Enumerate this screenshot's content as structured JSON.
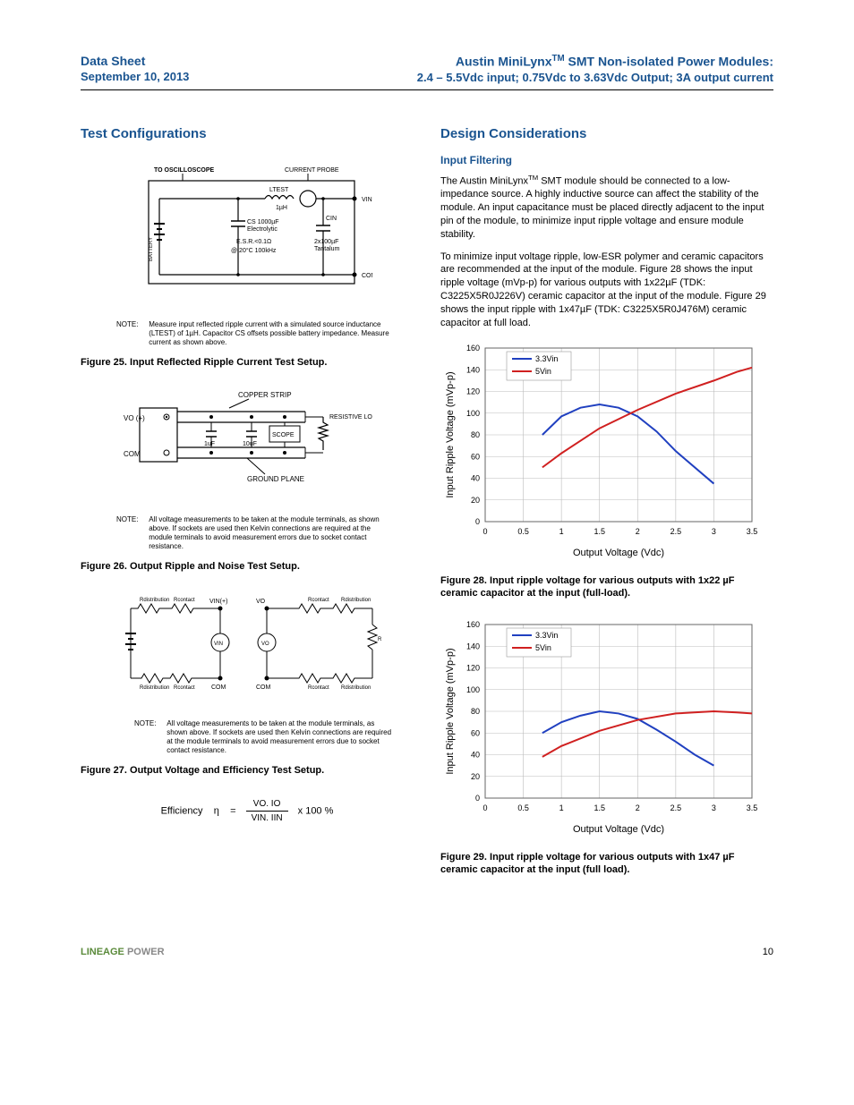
{
  "header": {
    "left_line1": "Data Sheet",
    "left_line2": "September 10, 2013",
    "right_line1_pre": "Austin MiniLynx",
    "right_line1_sup": "TM",
    "right_line1_post": " SMT Non-isolated Power Modules:",
    "right_line2": "2.4 – 5.5Vdc input; 0.75Vdc to 3.63Vdc Output; 3A output current"
  },
  "left_col": {
    "title": "Test Configurations",
    "fig25": {
      "labels": {
        "to_osc": "TO OSCILLOSCOPE",
        "current_probe": "CURRENT PROBE",
        "ltest": "LTEST",
        "l_1uh": "1µH",
        "vin": "VIN(+)",
        "cin_label": "CIN",
        "cin_val1": "2x100µF",
        "cin_val2": "Tantalum",
        "cs_label": "CS",
        "cs_val": "1000µF",
        "cs_type": "Electrolytic",
        "esr": "E.S.R.<0.1Ω",
        "esr_cond": "@ 20°C 100kHz",
        "battery": "BATTERY",
        "com": "COM"
      },
      "note_label": "NOTE:",
      "note": "Measure input reflected ripple current with a simulated source inductance (LTEST) of 1µH. Capacitor CS offsets possible battery impedance. Measure current as shown above.",
      "caption": "Figure 25. Input Reflected Ripple Current Test Setup."
    },
    "fig26": {
      "labels": {
        "copper": "COPPER STRIP",
        "vo": "VO (+)",
        "com": "COM",
        "c1": "1uF",
        "c2": "10uF",
        "scope": "SCOPE",
        "ground": "GROUND PLANE",
        "load": "RESISTIVE LOAD"
      },
      "note_label": "NOTE:",
      "note": "All voltage measurements to be taken at the module terminals, as shown above. If sockets are used then Kelvin connections are required at the module terminals to avoid measurement errors due to socket contact resistance.",
      "caption": "Figure 26. Output Ripple and Noise Test Setup."
    },
    "fig27": {
      "labels": {
        "rdist": "Rdistribution",
        "rcont": "Rcontact",
        "vin_plus": "VIN(+)",
        "vo": "VO",
        "vin_circle": "VIN",
        "vo_circle": "VO",
        "com": "COM",
        "rload": "RLOAD"
      },
      "note_label": "NOTE:",
      "note": "All voltage measurements to be taken at the module terminals, as shown above. If sockets are used then Kelvin connections are required at the module terminals to avoid measurement errors due to socket contact resistance.",
      "caption": "Figure 27. Output Voltage and Efficiency Test Setup."
    },
    "efficiency_eq": {
      "label": "Efficiency",
      "symbol": "η",
      "eq": "=",
      "num": "VO. IO",
      "den": "VIN. IIN",
      "tail": "x   100   %"
    }
  },
  "right_col": {
    "title": "Design Considerations",
    "sub1": "Input Filtering",
    "p1_pre": "The Austin MiniLynx",
    "p1_sup": "TM",
    "p1_post": " SMT module should be connected to a low-impedance source.  A highly inductive source can affect the stability of the module. An input capacitance must be placed directly adjacent to the input pin of the module, to minimize input ripple voltage and ensure module stability.",
    "p2": "To minimize input voltage ripple, low-ESR polymer and ceramic capacitors are recommended at the input of the module.   Figure 28 shows the input ripple voltage (mVp-p) for various outputs with 1x22µF (TDK: C3225X5R0J226V) ceramic capacitor at the input of the module.   Figure 29 shows the input ripple with 1x47µF (TDK: C3225X5R0J476M) ceramic capacitor at full load.",
    "fig28": {
      "caption": "Figure 28.  Input ripple voltage for various outputs with 1x22 µF ceramic capacitor at the input (full-load).",
      "x_label": "Output Voltage (Vdc)",
      "y_label": "Input Ripple Voltage (mVp-p)",
      "x_ticks": [
        "0",
        "0.5",
        "1",
        "1.5",
        "2",
        "2.5",
        "3",
        "3.5"
      ],
      "y_ticks": [
        "0",
        "20",
        "40",
        "60",
        "80",
        "100",
        "120",
        "140",
        "160"
      ],
      "ylim": [
        0,
        160
      ],
      "xlim": [
        0,
        3.5
      ],
      "legend": [
        {
          "label": "3.3Vin",
          "color": "#2040c0"
        },
        {
          "label": "5Vin",
          "color": "#d02020"
        }
      ],
      "grid_color": "#bcbcbc",
      "series": {
        "s33": {
          "color": "#2040c0",
          "points": [
            [
              0.75,
              80
            ],
            [
              1.0,
              97
            ],
            [
              1.25,
              105
            ],
            [
              1.5,
              108
            ],
            [
              1.75,
              105
            ],
            [
              2.0,
              97
            ],
            [
              2.25,
              83
            ],
            [
              2.5,
              65
            ],
            [
              3.0,
              35
            ]
          ]
        },
        "s5": {
          "color": "#d02020",
          "points": [
            [
              0.75,
              50
            ],
            [
              1.0,
              63
            ],
            [
              1.5,
              86
            ],
            [
              2.0,
              103
            ],
            [
              2.5,
              118
            ],
            [
              3.0,
              130
            ],
            [
              3.3,
              138
            ],
            [
              3.5,
              142
            ]
          ]
        }
      }
    },
    "fig29": {
      "caption": "Figure 29.  Input ripple voltage for various outputs with 1x47 µF ceramic capacitor at the input (full load).",
      "x_label": "Output Voltage (Vdc)",
      "y_label": "Input Ripple Voltage (mVp-p)",
      "x_ticks": [
        "0",
        "0.5",
        "1",
        "1.5",
        "2",
        "2.5",
        "3",
        "3.5"
      ],
      "y_ticks": [
        "0",
        "20",
        "40",
        "60",
        "80",
        "100",
        "120",
        "140",
        "160"
      ],
      "ylim": [
        0,
        160
      ],
      "xlim": [
        0,
        3.5
      ],
      "legend": [
        {
          "label": "3.3Vin",
          "color": "#2040c0"
        },
        {
          "label": "5Vin",
          "color": "#d02020"
        }
      ],
      "grid_color": "#bcbcbc",
      "series": {
        "s33": {
          "color": "#2040c0",
          "points": [
            [
              0.75,
              60
            ],
            [
              1.0,
              70
            ],
            [
              1.25,
              76
            ],
            [
              1.5,
              80
            ],
            [
              1.75,
              78
            ],
            [
              2.0,
              73
            ],
            [
              2.25,
              63
            ],
            [
              2.5,
              52
            ],
            [
              2.75,
              40
            ],
            [
              3.0,
              30
            ]
          ]
        },
        "s5": {
          "color": "#d02020",
          "points": [
            [
              0.75,
              38
            ],
            [
              1.0,
              48
            ],
            [
              1.5,
              62
            ],
            [
              2.0,
              72
            ],
            [
              2.5,
              78
            ],
            [
              3.0,
              80
            ],
            [
              3.3,
              79
            ],
            [
              3.5,
              78
            ]
          ]
        }
      }
    }
  },
  "footer": {
    "brand1": "LINEAGE",
    "brand2": "POWER",
    "page": "10"
  }
}
